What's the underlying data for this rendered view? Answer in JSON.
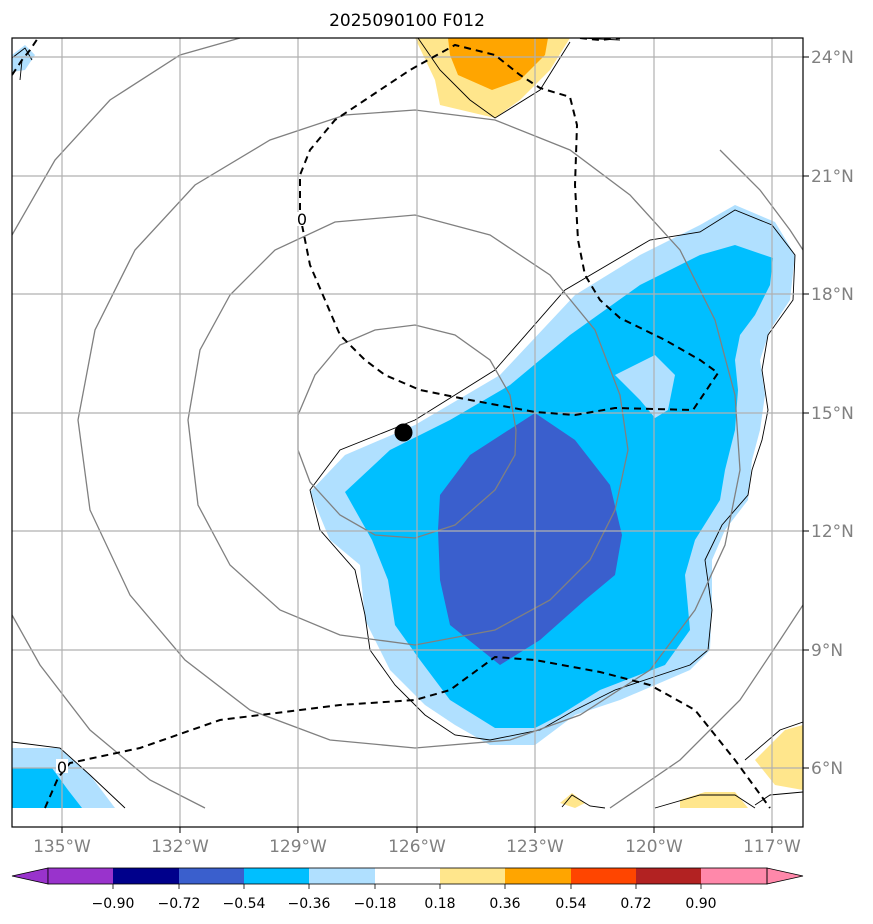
{
  "title": "2025090100 F012",
  "map": {
    "lon_ticks": [
      "135°W",
      "132°W",
      "129°W",
      "126°W",
      "123°W",
      "120°W",
      "117°W"
    ],
    "lat_ticks": [
      "24°N",
      "21°N",
      "18°N",
      "15°N",
      "12°N",
      "9°N",
      "6°N"
    ],
    "lon_range": [
      -136.2,
      -116.2
    ],
    "lat_range": [
      4.5,
      24.5
    ],
    "zero_contour_labels": [
      "0",
      "0"
    ],
    "storm_center": {
      "lon": -126.3,
      "lat": 14.5
    }
  },
  "colorbar": {
    "ticks": [
      "−0.90",
      "−0.72",
      "−0.54",
      "−0.36",
      "−0.18",
      "0.18",
      "0.36",
      "0.54",
      "0.72",
      "0.90"
    ],
    "colors": [
      "#9933cc",
      "#00008b",
      "#3a5fcd",
      "#00bfff",
      "#b0e0ff",
      "#ffffff",
      "#ffe68c",
      "#ffa500",
      "#ff4500",
      "#b22222",
      "#ff88aa"
    ]
  },
  "colors": {
    "shade_light_blue": "#b0e0ff",
    "shade_blue": "#00bfff",
    "shade_dark_blue": "#3a5fcd",
    "shade_yellow": "#ffe68c",
    "shade_orange": "#ffa500",
    "grid": "#b0b0b0",
    "pressure_contour": "#808080"
  }
}
